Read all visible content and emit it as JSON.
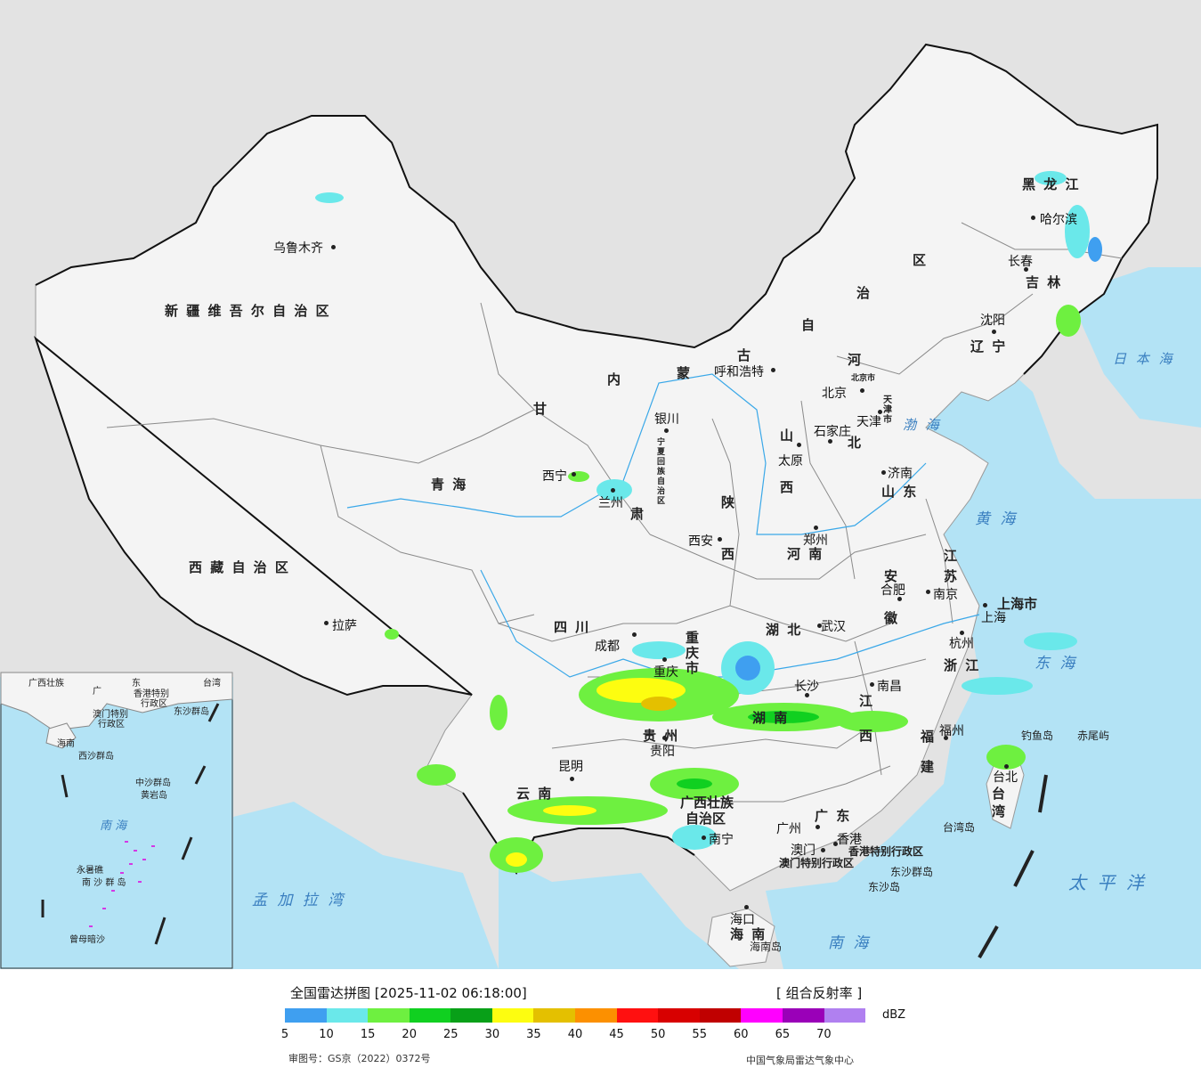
{
  "map": {
    "provinces": [
      "新疆维吾尔自治区",
      "西藏自治区",
      "青海",
      "甘",
      "内",
      "蒙",
      "古",
      "自",
      "治",
      "区",
      "黑",
      "龙",
      "江",
      "吉",
      "林",
      "辽",
      "宁",
      "河",
      "北",
      "山",
      "西",
      "陕",
      "河",
      "南",
      "山",
      "东",
      "江",
      "苏",
      "安",
      "徽",
      "浙",
      "江",
      "湖",
      "北",
      "湖",
      "南",
      "江",
      "西",
      "福",
      "建",
      "四",
      "川",
      "重庆市",
      "贵",
      "州",
      "云",
      "南",
      "广西壮族",
      "自治区",
      "广",
      "东",
      "海",
      "南",
      "台",
      "湾",
      "上海市",
      "天津市",
      "宁夏回族自治区",
      "香港特别行政区",
      "澳门特别行政区"
    ],
    "province_labels": {
      "xinjiang": "新 疆 维 吾 尔 自 治 区",
      "xizang": "西 藏 自 治 区",
      "qinghai": "青     海",
      "gansu_1": "甘",
      "gansu_2": "肃",
      "nmg_1": "内",
      "nmg_2": "蒙",
      "nmg_3": "古",
      "nmg_4": "自",
      "nmg_5": "治",
      "nmg_6": "区",
      "hlj": "黑   龙   江",
      "jilin": "吉   林",
      "liaoning": "辽   宁",
      "hebei_1": "河",
      "hebei_2": "北",
      "shanxi_1": "山",
      "shanxi_2": "西",
      "shaanxi_1": "陕",
      "shaanxi_2": "西",
      "henan": "河    南",
      "shandong": "山  东",
      "jiangsu_1": "江",
      "jiangsu_2": "苏",
      "anhui_1": "安",
      "anhui_2": "徽",
      "zhejiang": "浙 江",
      "hubei": "湖    北",
      "hunan": "湖  南",
      "jiangxi_1": "江",
      "jiangxi_2": "西",
      "fujian_1": "福",
      "fujian_2": "建",
      "sichuan": "四       川",
      "chongqing": "重庆市",
      "guizhou": "贵   州",
      "yunnan": "云    南",
      "guangxi_1": "广西壮族",
      "guangxi_2": "自治区",
      "guangdong": "广    东",
      "hainan": "海 南",
      "taiwan_1": "台",
      "taiwan_2": "湾",
      "shanghai": "上海市",
      "tianjin": "天津市",
      "beijing": "北京市",
      "ningxia": "宁夏回族自治区",
      "hk": "香港特别行政区",
      "macau": "澳门特别行政区"
    },
    "cities": {
      "urumqi": "乌鲁木齐",
      "lhasa": "拉萨",
      "xining": "西宁",
      "lanzhou": "兰州",
      "yinchuan": "银川",
      "huhehaote": "呼和浩特",
      "beijing": "北京",
      "tianjin": "天津",
      "shijiazhuang": "石家庄",
      "taiyuan": "太原",
      "jinan": "济南",
      "zhengzhou": "郑州",
      "xian": "西安",
      "harbin": "哈尔滨",
      "changchun": "长春",
      "shenyang": "沈阳",
      "nanjing": "南京",
      "hefei": "合肥",
      "shanghai": "上海",
      "hangzhou": "杭州",
      "wuhan": "武汉",
      "chengdu": "成都",
      "chongqing": "重庆",
      "changsha": "长沙",
      "nanchang": "南昌",
      "fuzhou": "福州",
      "guiyang": "贵阳",
      "kunming": "昆明",
      "nanning": "南宁",
      "guangzhou": "广州",
      "hongkong": "香港",
      "macau": "澳门",
      "haikou": "海口",
      "taibei": "台北"
    },
    "seas": {
      "japan_sea": "日 本 海",
      "bohai": "渤 海",
      "yellow_sea": "黄 海",
      "east_sea": "东 海",
      "pacific": "太 平 洋",
      "south_sea": "南   海",
      "bengal": "孟 加 拉 湾"
    },
    "islands": {
      "diaoyu": "钓鱼岛",
      "chiwei": "赤尾屿",
      "taiwan_island": "台湾岛",
      "dongsha": "东沙群岛",
      "dongsha_island": "东沙岛",
      "hainan_island": "海南岛"
    },
    "inset": {
      "labels": [
        "广西壮族",
        "广",
        "东",
        "香港特别",
        "行政区",
        "澳门特别",
        "行政区",
        "台湾",
        "东沙群岛",
        "海南",
        "西沙群岛",
        "中沙群岛",
        "黄岩岛",
        "南  海",
        "永暑礁",
        "南 沙 群 岛",
        "曾母暗沙"
      ]
    }
  },
  "legend": {
    "title": "全国雷达拼图 [2025-11-02 06:18:00]",
    "product": "[ 组合反射率 ]",
    "unit": "dBZ",
    "colors": [
      "#3f9ff0",
      "#6ae8ea",
      "#6ef040",
      "#10d020",
      "#08a018",
      "#fdfd10",
      "#e4c000",
      "#fc9000",
      "#ff1010",
      "#d80000",
      "#c00000",
      "#ff00ff",
      "#9a00b8",
      "#b080f0"
    ],
    "ticks": [
      "5",
      "10",
      "15",
      "20",
      "25",
      "30",
      "35",
      "40",
      "45",
      "50",
      "55",
      "60",
      "65",
      "70"
    ],
    "approval": "审图号：GS京（2022）0372号",
    "source": "中国气象局雷达气象中心"
  }
}
